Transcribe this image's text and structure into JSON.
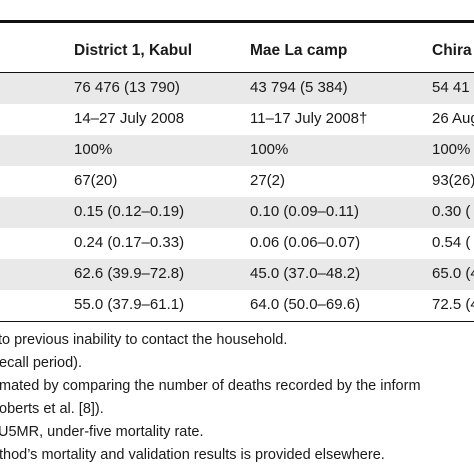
{
  "table": {
    "columns": [
      "District 1, Kabul",
      "Mae La camp",
      "Chira"
    ],
    "rows": [
      {
        "c1": "76 476 (13 790)",
        "c2": "43 794 (5 384)",
        "c3": "54 41"
      },
      {
        "c1": "14–27 July 2008",
        "c2": "11–17 July 2008†",
        "c3": "26 Aug"
      },
      {
        "c1": "100%",
        "c2": "100%",
        "c3": "100%"
      },
      {
        "c1": "67(20)",
        "c2": "27(2)",
        "c3": "93(26)"
      },
      {
        "c1": "0.15 (0.12–0.19)",
        "c2": "0.10 (0.09–0.11)",
        "c3": "0.30 ("
      },
      {
        "c1": "0.24 (0.17–0.33)",
        "c2": "0.06 (0.06–0.07)",
        "c3": "0.54 ("
      },
      {
        "c1": "62.6 (39.9–72.8)",
        "c2": "45.0 (37.0–48.2)",
        "c3": "65.0 (4"
      },
      {
        "c1": "55.0 (37.9–61.1)",
        "c2": "64.0 (50.0–69.6)",
        "c3": "72.5 (4"
      }
    ]
  },
  "footnotes": [
    "to previous inability to contact the household.",
    "ecall period).",
    "mated by comparing the number of deaths recorded by the inform",
    "oberts et al. [8]).",
    "U5MR, under-five mortality rate.",
    "thod’s mortality and validation results is provided elsewhere."
  ]
}
